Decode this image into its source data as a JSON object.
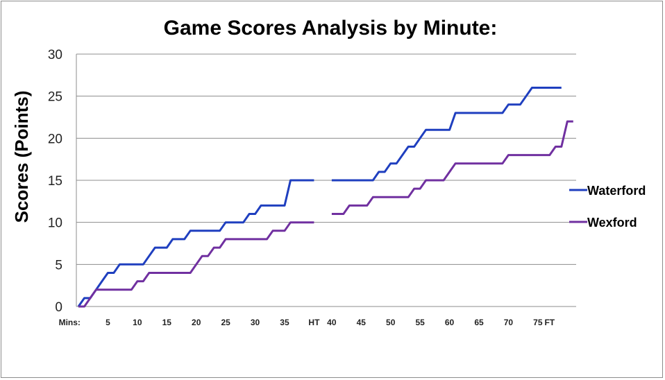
{
  "chart_data": {
    "type": "line",
    "title": "Game Scores Analysis by Minute:",
    "ylabel": "Scores (Points)",
    "xlabel": "",
    "ylim": [
      0,
      30
    ],
    "yticks": [
      0,
      5,
      10,
      15,
      20,
      25,
      30
    ],
    "grid": true,
    "legend_position": "right",
    "x_tick_labels": [
      {
        "minute": -1.5,
        "label": "Mins:"
      },
      {
        "minute": 5,
        "label": "5"
      },
      {
        "minute": 10,
        "label": "10"
      },
      {
        "minute": 15,
        "label": "15"
      },
      {
        "minute": 20,
        "label": "20"
      },
      {
        "minute": 25,
        "label": "25"
      },
      {
        "minute": 30,
        "label": "30"
      },
      {
        "minute": 35,
        "label": "35"
      },
      {
        "minute": 40,
        "label": "HT"
      },
      {
        "minute": 43,
        "label": "40"
      },
      {
        "minute": 48,
        "label": "45"
      },
      {
        "minute": 53,
        "label": "50"
      },
      {
        "minute": 58,
        "label": "55"
      },
      {
        "minute": 63,
        "label": "60"
      },
      {
        "minute": 68,
        "label": "65"
      },
      {
        "minute": 73,
        "label": "70"
      },
      {
        "minute": 78,
        "label": "75"
      },
      {
        "minute": 80,
        "label": "FT"
      }
    ],
    "series": [
      {
        "name": "Waterford",
        "color": "#1f3fbf",
        "segments": [
          [
            [
              0,
              0
            ],
            [
              1,
              1
            ],
            [
              2,
              1
            ],
            [
              3,
              2
            ],
            [
              4,
              3
            ],
            [
              5,
              4
            ],
            [
              6,
              4
            ],
            [
              7,
              5
            ],
            [
              8,
              5
            ],
            [
              9,
              5
            ],
            [
              10,
              5
            ],
            [
              11,
              5
            ],
            [
              12,
              6
            ],
            [
              13,
              7
            ],
            [
              14,
              7
            ],
            [
              15,
              7
            ],
            [
              16,
              8
            ],
            [
              17,
              8
            ],
            [
              18,
              8
            ],
            [
              19,
              9
            ],
            [
              20,
              9
            ],
            [
              21,
              9
            ],
            [
              22,
              9
            ],
            [
              23,
              9
            ],
            [
              24,
              9
            ],
            [
              25,
              10
            ],
            [
              26,
              10
            ],
            [
              27,
              10
            ],
            [
              28,
              10
            ],
            [
              29,
              11
            ],
            [
              30,
              11
            ],
            [
              31,
              12
            ],
            [
              32,
              12
            ],
            [
              33,
              12
            ],
            [
              34,
              12
            ],
            [
              35,
              12
            ],
            [
              36,
              15
            ],
            [
              37,
              15
            ],
            [
              38,
              15
            ],
            [
              39,
              15
            ],
            [
              40,
              15
            ]
          ],
          [
            [
              43,
              15
            ],
            [
              44,
              15
            ],
            [
              45,
              15
            ],
            [
              46,
              15
            ],
            [
              47,
              15
            ],
            [
              48,
              15
            ],
            [
              49,
              15
            ],
            [
              50,
              15
            ],
            [
              51,
              16
            ],
            [
              52,
              16
            ],
            [
              53,
              17
            ],
            [
              54,
              17
            ],
            [
              55,
              18
            ],
            [
              56,
              19
            ],
            [
              57,
              19
            ],
            [
              58,
              20
            ],
            [
              59,
              21
            ],
            [
              60,
              21
            ],
            [
              61,
              21
            ],
            [
              62,
              21
            ],
            [
              63,
              21
            ],
            [
              64,
              23
            ],
            [
              65,
              23
            ],
            [
              66,
              23
            ],
            [
              67,
              23
            ],
            [
              68,
              23
            ],
            [
              69,
              23
            ],
            [
              70,
              23
            ],
            [
              71,
              23
            ],
            [
              72,
              23
            ],
            [
              73,
              24
            ],
            [
              74,
              24
            ],
            [
              75,
              24
            ],
            [
              76,
              25
            ],
            [
              77,
              26
            ],
            [
              78,
              26
            ],
            [
              79,
              26
            ],
            [
              80,
              26
            ],
            [
              81,
              26
            ],
            [
              82,
              26
            ]
          ]
        ]
      },
      {
        "name": "Wexford",
        "color": "#7030a0",
        "segments": [
          [
            [
              0,
              0
            ],
            [
              1,
              0
            ],
            [
              2,
              1
            ],
            [
              3,
              2
            ],
            [
              4,
              2
            ],
            [
              5,
              2
            ],
            [
              6,
              2
            ],
            [
              7,
              2
            ],
            [
              8,
              2
            ],
            [
              9,
              2
            ],
            [
              10,
              3
            ],
            [
              11,
              3
            ],
            [
              12,
              4
            ],
            [
              13,
              4
            ],
            [
              14,
              4
            ],
            [
              15,
              4
            ],
            [
              16,
              4
            ],
            [
              17,
              4
            ],
            [
              18,
              4
            ],
            [
              19,
              4
            ],
            [
              20,
              5
            ],
            [
              21,
              6
            ],
            [
              22,
              6
            ],
            [
              23,
              7
            ],
            [
              24,
              7
            ],
            [
              25,
              8
            ],
            [
              26,
              8
            ],
            [
              27,
              8
            ],
            [
              28,
              8
            ],
            [
              29,
              8
            ],
            [
              30,
              8
            ],
            [
              31,
              8
            ],
            [
              32,
              8
            ],
            [
              33,
              9
            ],
            [
              34,
              9
            ],
            [
              35,
              9
            ],
            [
              36,
              10
            ],
            [
              37,
              10
            ],
            [
              38,
              10
            ],
            [
              39,
              10
            ],
            [
              40,
              10
            ]
          ],
          [
            [
              43,
              11
            ],
            [
              44,
              11
            ],
            [
              45,
              11
            ],
            [
              46,
              12
            ],
            [
              47,
              12
            ],
            [
              48,
              12
            ],
            [
              49,
              12
            ],
            [
              50,
              13
            ],
            [
              51,
              13
            ],
            [
              52,
              13
            ],
            [
              53,
              13
            ],
            [
              54,
              13
            ],
            [
              55,
              13
            ],
            [
              56,
              13
            ],
            [
              57,
              14
            ],
            [
              58,
              14
            ],
            [
              59,
              15
            ],
            [
              60,
              15
            ],
            [
              61,
              15
            ],
            [
              62,
              15
            ],
            [
              63,
              16
            ],
            [
              64,
              17
            ],
            [
              65,
              17
            ],
            [
              66,
              17
            ],
            [
              67,
              17
            ],
            [
              68,
              17
            ],
            [
              69,
              17
            ],
            [
              70,
              17
            ],
            [
              71,
              17
            ],
            [
              72,
              17
            ],
            [
              73,
              18
            ],
            [
              74,
              18
            ],
            [
              75,
              18
            ],
            [
              76,
              18
            ],
            [
              77,
              18
            ],
            [
              78,
              18
            ],
            [
              79,
              18
            ],
            [
              80,
              18
            ],
            [
              81,
              19
            ],
            [
              82,
              19
            ],
            [
              83,
              22
            ],
            [
              84,
              22
            ]
          ]
        ]
      }
    ]
  }
}
